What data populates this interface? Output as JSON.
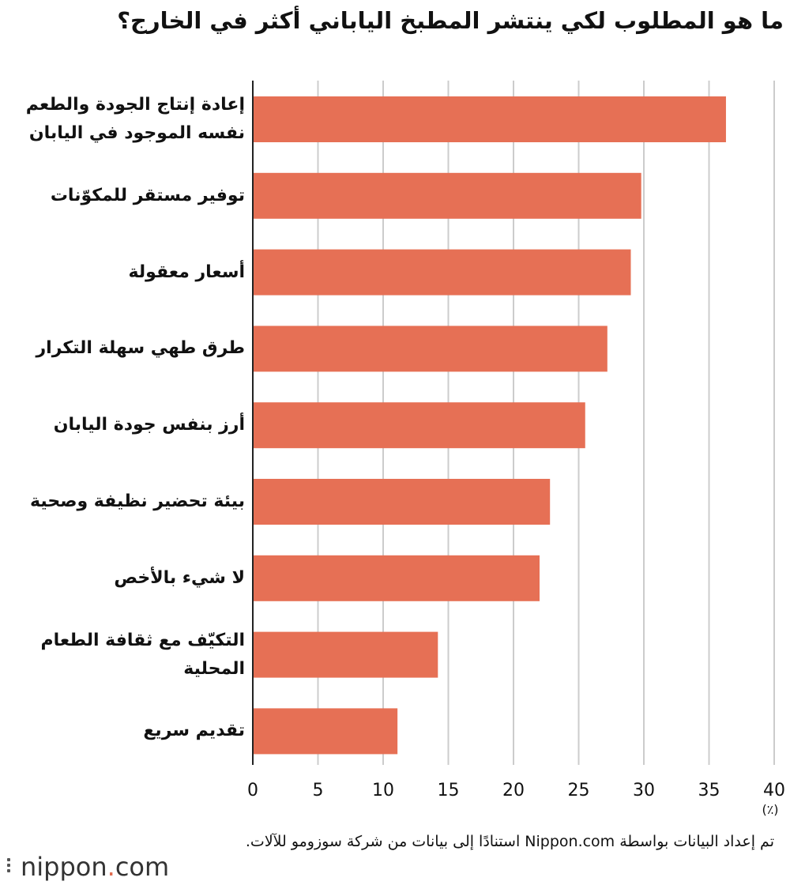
{
  "title": "ما هو المطلوب لكي ينتشر المطبخ الياباني أكثر في الخارج؟",
  "unit_label": "(٪)",
  "source": "تم إعداد البيانات بواسطة Nippon.com استنادًا إلى بيانات من شركة سوزومو للآلات.",
  "logo": {
    "text_main": "nippon",
    "dot": ".",
    "text_tail": "com"
  },
  "colors": {
    "bar": "#e67055",
    "grid": "#cccccc",
    "axis": "#222222"
  },
  "chart_data": {
    "type": "bar",
    "orientation": "horizontal",
    "categories": [
      "إعادة إنتاج الجودة والطعم نفسه الموجود في اليابان",
      "توفير مستقر للمكوّنات",
      "أسعار معقولة",
      "طرق طهي سهلة التكرار",
      "أرز بنفس جودة اليابان",
      "بيئة تحضير نظيفة وصحية",
      "لا شيء بالأخص",
      "التكيّف مع ثقافة الطعام المحلية",
      "تقديم سريع"
    ],
    "values": [
      36.3,
      29.8,
      29.0,
      27.2,
      25.5,
      22.8,
      22.0,
      14.2,
      11.1
    ],
    "xlim": [
      0,
      40
    ],
    "xticks": [
      0,
      5,
      10,
      15,
      20,
      25,
      30,
      35,
      40
    ],
    "grid": true
  }
}
